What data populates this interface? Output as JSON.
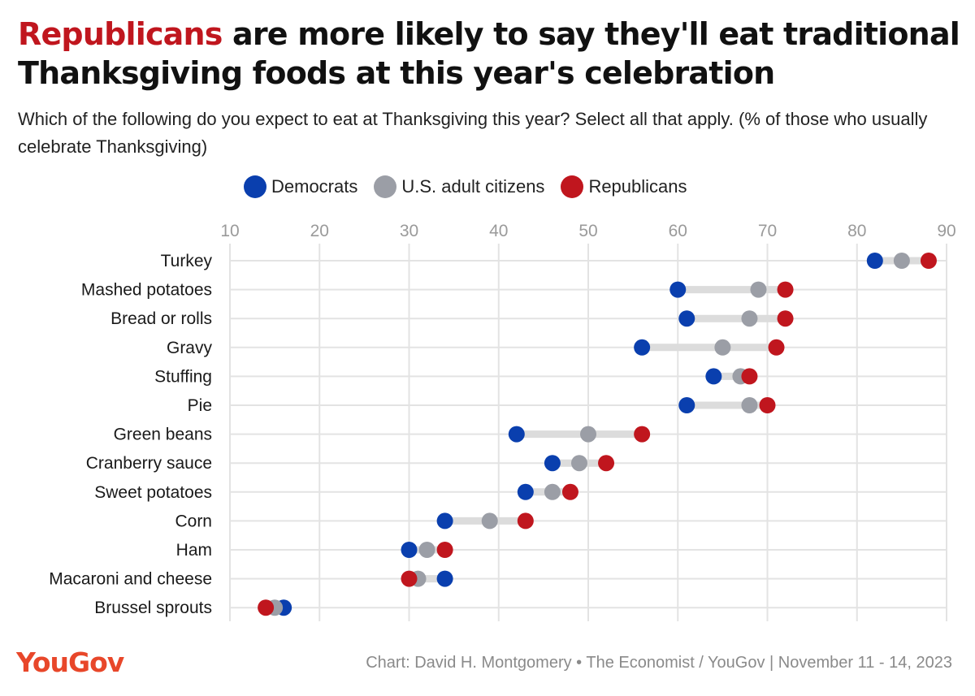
{
  "title_accent": "Republicans",
  "title_rest": " are more likely to say they'll eat traditional Thanksgiving foods at this year's celebration",
  "subtitle": "Which of the following do you expect to eat at Thanksgiving this year? Select all that apply. (% of those who usually celebrate Thanksgiving)",
  "legend": [
    {
      "label": "Democrats",
      "color": "#0a3fae"
    },
    {
      "label": "U.S. adult citizens",
      "color": "#9b9ea6"
    },
    {
      "label": "Republicans",
      "color": "#c0161e"
    }
  ],
  "footer": {
    "logo": "YouGov",
    "source": "Chart: David H. Montgomery • The Economist / YouGov | November 11 - 14, 2023"
  },
  "chart_data": {
    "type": "dot",
    "title": "Republicans are more likely to say they'll eat traditional Thanksgiving foods at this year's celebration",
    "xlim": [
      10,
      90
    ],
    "xticks": [
      10,
      20,
      30,
      40,
      50,
      60,
      70,
      80,
      90
    ],
    "grid": true,
    "legend_position": "top",
    "categories": [
      "Turkey",
      "Mashed potatoes",
      "Bread or rolls",
      "Gravy",
      "Stuffing",
      "Pie",
      "Green beans",
      "Cranberry sauce",
      "Sweet potatoes",
      "Corn",
      "Ham",
      "Macaroni and cheese",
      "Brussel sprouts"
    ],
    "series": [
      {
        "name": "Democrats",
        "color": "#0a3fae",
        "values": [
          82,
          60,
          61,
          56,
          64,
          61,
          42,
          46,
          43,
          34,
          30,
          34,
          16
        ]
      },
      {
        "name": "U.S. adult citizens",
        "color": "#9b9ea6",
        "values": [
          85,
          69,
          68,
          65,
          67,
          68,
          50,
          49,
          46,
          39,
          32,
          31,
          15
        ]
      },
      {
        "name": "Republicans",
        "color": "#c0161e",
        "values": [
          88,
          72,
          72,
          71,
          68,
          70,
          56,
          52,
          48,
          43,
          34,
          30,
          14
        ]
      }
    ]
  }
}
